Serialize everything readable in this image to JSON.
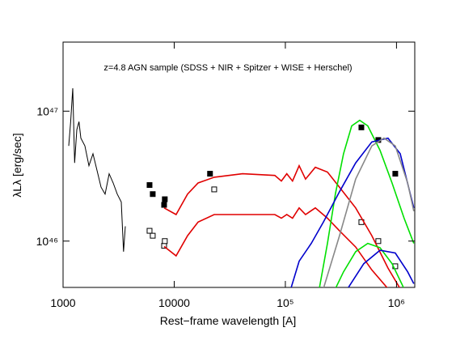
{
  "chart_data": {
    "type": "line",
    "annotation": "z=4.8 AGN sample (SDSS + NIR + Spitzer + WISE + Herschel)",
    "x_label": "Rest−frame wavelength [A]",
    "y_label": "λLλ [erg/sec]",
    "xscale": "log",
    "yscale": "log",
    "xlim": [
      1000,
      1460000
    ],
    "ylim": [
      4.4e+45,
      3.4e+47
    ],
    "xticks": [
      1000,
      10000,
      {
        "value": 100000,
        "label": "10⁵"
      },
      {
        "value": 1000000,
        "label": "10⁶"
      }
    ],
    "yticks": [
      {
        "value": 1e+46,
        "label": "10⁴⁶"
      },
      {
        "value": 1e+47,
        "label": "10⁴⁷"
      }
    ],
    "series": [
      {
        "color": "#000000",
        "marker": "none",
        "x": [
          1124,
          1170,
          1222,
          1270,
          1329,
          1390,
          1445,
          1571,
          1709,
          1858,
          2020,
          2197,
          2389,
          2597,
          2825,
          3071,
          3340,
          3500,
          3631
        ],
        "values": [
          5.4e+46,
          8.3e+46,
          1.5e+47,
          4e+46,
          7.2e+46,
          8.3e+46,
          6.2e+46,
          5.4e+46,
          3.8e+46,
          4.7e+46,
          3.5e+46,
          2.6e+46,
          2.3e+46,
          3.3e+46,
          2.8e+46,
          2.3e+46,
          2e+46,
          8.3e+45,
          1.3e+46
        ]
      },
      {
        "color": "#000000",
        "marker": "filled-square",
        "x": [
          6000,
          6410,
          8110,
          8230,
          21000,
          483000,
          686000,
          975000
        ],
        "values": [
          2.7e+46,
          2.3e+46,
          1.9e+46,
          2.1e+46,
          3.3e+46,
          7.5e+46,
          6e+46,
          3.3e+46
        ]
      },
      {
        "color": "#000000",
        "marker": "open-square",
        "x": [
          6000,
          6410,
          8110,
          8230,
          22900,
          483000,
          686000,
          975000
        ],
        "values": [
          1.2e+46,
          1.1e+46,
          9.2e+45,
          1e+46,
          2.5e+46,
          1.4e+46,
          1e+46,
          6.4e+45
        ]
      },
      {
        "color": "#e00000",
        "marker": "none",
        "x": [
          8110,
          10400,
          13200,
          16400,
          22900,
          41200,
          80400,
          92000,
          103000,
          116000,
          133000,
          152000,
          186000,
          239000,
          307000,
          429000,
          600000,
          839000,
          1080000
        ],
        "values": [
          1.8e+46,
          1.6e+46,
          2.3e+46,
          2.8e+46,
          3.1e+46,
          3.3e+46,
          3.2e+46,
          2.9e+46,
          3.3e+46,
          2.9e+46,
          3.8e+46,
          3e+46,
          3.7e+46,
          3.4e+46,
          2.6e+46,
          1.8e+46,
          1.1e+46,
          6.2e+45,
          4.3e+45
        ]
      },
      {
        "color": "#e00000",
        "marker": "none",
        "x": [
          8110,
          10400,
          13200,
          16400,
          22900,
          41200,
          80400,
          92000,
          103000,
          116000,
          133000,
          152000,
          186000,
          239000,
          307000,
          429000,
          600000,
          839000
        ],
        "values": [
          9.1e+45,
          7.7e+45,
          1.1e+46,
          1.4e+46,
          1.6e+46,
          1.6e+46,
          1.6e+46,
          1.5e+46,
          1.6e+46,
          1.5e+46,
          1.8e+46,
          1.6e+46,
          1.8e+46,
          1.5e+46,
          1.2e+46,
          9e+45,
          6e+45,
          4.3e+45
        ]
      },
      {
        "color": "#00e000",
        "marker": "none",
        "x": [
          202000,
          239000,
          282000,
          334000,
          395000,
          467000,
          552000,
          710000,
          912000,
          1170000,
          1430000
        ],
        "values": [
          4.3e+45,
          9.6e+45,
          2.3e+46,
          4.7e+46,
          7.7e+46,
          8.5e+46,
          7.7e+46,
          5e+46,
          2.8e+46,
          1.5e+46,
          9.6e+45
        ]
      },
      {
        "color": "#00e000",
        "marker": "none",
        "x": [
          282000,
          334000,
          429000,
          552000,
          710000,
          912000,
          1170000
        ],
        "values": [
          4.3e+45,
          5.8e+45,
          8.3e+45,
          9.6e+45,
          8.9e+45,
          6.7e+45,
          4.3e+45
        ]
      },
      {
        "color": "#0000cc",
        "marker": "none",
        "x": [
          112000,
          133000,
          171000,
          220000,
          307000,
          429000,
          600000,
          839000,
          1080000,
          1430000
        ],
        "values": [
          4.3e+45,
          7e+45,
          9.6e+45,
          1.4e+46,
          2.4e+46,
          4e+46,
          5.8e+46,
          6.2e+46,
          4.7e+46,
          1.8e+46
        ]
      },
      {
        "color": "#0000cc",
        "marker": "none",
        "x": [
          363000,
          507000,
          710000,
          975000,
          1260000,
          1430000
        ],
        "values": [
          4.3e+45,
          6.7e+45,
          8.5e+45,
          8.1e+45,
          5.8e+45,
          4.7e+45
        ]
      },
      {
        "color": "#888888",
        "marker": "none",
        "x": [
          220000,
          307000,
          429000,
          600000,
          771000,
          975000,
          1260000,
          1430000
        ],
        "values": [
          4.3e+45,
          1.1e+46,
          3e+46,
          5.4e+46,
          6.2e+46,
          5.4e+46,
          2.8e+46,
          1.7e+46
        ]
      }
    ]
  }
}
